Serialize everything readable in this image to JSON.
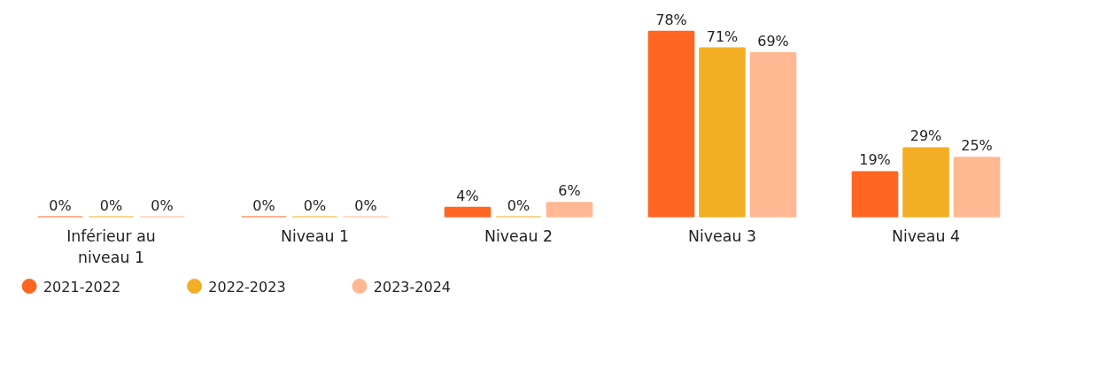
{
  "chart_data": {
    "type": "bar",
    "categories": [
      "Inférieur au niveau 1",
      "Niveau 1",
      "Niveau 2",
      "Niveau 3",
      "Niveau 4"
    ],
    "series": [
      {
        "name": "2021-2022",
        "color": "#ff6622",
        "values": [
          0,
          0,
          4,
          78,
          19
        ],
        "value_labels": [
          "0%",
          "0%",
          "4%",
          "78%",
          "19%"
        ]
      },
      {
        "name": "2022-2023",
        "color": "#f2ae24",
        "values": [
          0,
          0,
          0,
          71,
          29
        ],
        "value_labels": [
          "0%",
          "0%",
          "0%",
          "71%",
          "29%"
        ]
      },
      {
        "name": "2023-2024",
        "color": "#ffb891",
        "values": [
          0,
          0,
          6,
          69,
          25
        ],
        "value_labels": [
          "0%",
          "0%",
          "6%",
          "69%",
          "25%"
        ]
      }
    ],
    "data_labels": false,
    "grid": false,
    "legend": "bottom left"
  }
}
